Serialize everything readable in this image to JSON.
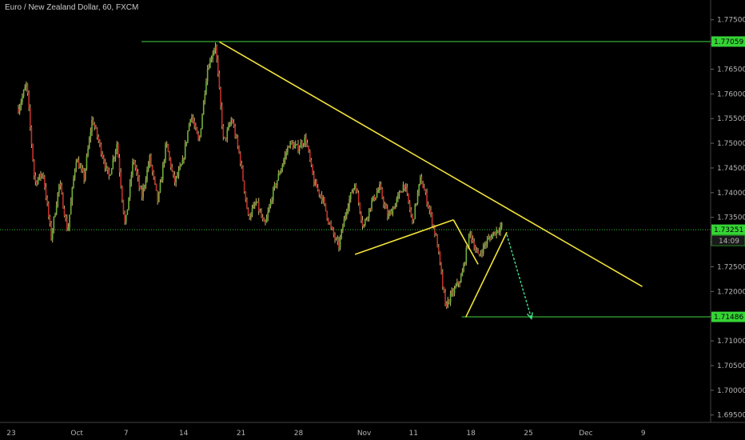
{
  "header": {
    "title": "Euro / New Zealand Dollar, 60, FXCM"
  },
  "colors": {
    "background": "#000000",
    "bull": "#6fae3a",
    "bear": "#c0302b",
    "wick": "#c8b46a",
    "axis_text": "#b3b3b3",
    "hline_green": "#2e9e2e",
    "trend_yellow": "#f2e23a",
    "arrow_green": "#46e08a",
    "current_price_line": "#37c837",
    "tag_green": "#35d435"
  },
  "chart_data": {
    "type": "candlestick",
    "instrument": "EUR/NZD",
    "timeframe": "60",
    "source": "FXCM",
    "ylim": [
      1.6935,
      1.779
    ],
    "y_ticks": [
      "1.77500",
      "1.77000",
      "1.76500",
      "1.76000",
      "1.75500",
      "1.75000",
      "1.74500",
      "1.74000",
      "1.73500",
      "1.73000",
      "1.72500",
      "1.72000",
      "1.71500",
      "1.71000",
      "1.70500",
      "1.70000",
      "1.69500"
    ],
    "x_ticks": [
      "23",
      "Oct",
      "7",
      "14",
      "21",
      "28",
      "Nov",
      "11",
      "18",
      "25",
      "Dec",
      "9"
    ],
    "x_tick_days": [
      0,
      8,
      14,
      21,
      28,
      35,
      43,
      49,
      56,
      63,
      70,
      77
    ],
    "candles_period": [
      0,
      59
    ],
    "price_path": [
      [
        0,
        1.757
      ],
      [
        1,
        1.762
      ],
      [
        2,
        1.742
      ],
      [
        3,
        1.744
      ],
      [
        4,
        1.731
      ],
      [
        5,
        1.742
      ],
      [
        6,
        1.732
      ],
      [
        7,
        1.747
      ],
      [
        8,
        1.743
      ],
      [
        9,
        1.755
      ],
      [
        10,
        1.749
      ],
      [
        11,
        1.743
      ],
      [
        12,
        1.75
      ],
      [
        13,
        1.733
      ],
      [
        14,
        1.747
      ],
      [
        15,
        1.739
      ],
      [
        16,
        1.747
      ],
      [
        17,
        1.738
      ],
      [
        18,
        1.75
      ],
      [
        19,
        1.742
      ],
      [
        20,
        1.746
      ],
      [
        21,
        1.756
      ],
      [
        22,
        1.75
      ],
      [
        23,
        1.765
      ],
      [
        24,
        1.77
      ],
      [
        25,
        1.75
      ],
      [
        26,
        1.755
      ],
      [
        27,
        1.747
      ],
      [
        28,
        1.735
      ],
      [
        29,
        1.738
      ],
      [
        30,
        1.733
      ],
      [
        31,
        1.74
      ],
      [
        32,
        1.745
      ],
      [
        33,
        1.75
      ],
      [
        34,
        1.749
      ],
      [
        35,
        1.751
      ],
      [
        36,
        1.742
      ],
      [
        37,
        1.739
      ],
      [
        38,
        1.733
      ],
      [
        39,
        1.729
      ],
      [
        40,
        1.737
      ],
      [
        41,
        1.742
      ],
      [
        42,
        1.733
      ],
      [
        43,
        1.738
      ],
      [
        44,
        1.741
      ],
      [
        45,
        1.735
      ],
      [
        46,
        1.738
      ],
      [
        47,
        1.742
      ],
      [
        48,
        1.734
      ],
      [
        49,
        1.743
      ],
      [
        50,
        1.737
      ],
      [
        51,
        1.73
      ],
      [
        52,
        1.717
      ],
      [
        53,
        1.72
      ],
      [
        54,
        1.723
      ],
      [
        55,
        1.732
      ],
      [
        56,
        1.727
      ],
      [
        57,
        1.73
      ],
      [
        58,
        1.732
      ],
      [
        59,
        1.7335
      ]
    ],
    "horizontal_levels": [
      {
        "price": 1.77059,
        "label": "1.77059",
        "from_day": 15
      },
      {
        "price": 1.71486,
        "label": "1.71486",
        "from_day": 54
      }
    ],
    "current_price": {
      "value": 1.73251,
      "label": "1.73251",
      "countdown": "14:09"
    },
    "trendlines": [
      {
        "name": "descending-resistance",
        "points": [
          [
            24.5,
            1.7705
          ],
          [
            76,
            1.721
          ]
        ]
      },
      {
        "name": "rising-wedge-lower",
        "points": [
          [
            41,
            1.7275
          ],
          [
            53,
            1.7345
          ]
        ]
      },
      {
        "name": "flag-left",
        "points": [
          [
            53,
            1.7345
          ],
          [
            56,
            1.7255
          ]
        ]
      },
      {
        "name": "flag-right",
        "points": [
          [
            54.5,
            1.7148
          ],
          [
            59.5,
            1.732
          ]
        ]
      }
    ],
    "projection_arrow": {
      "points": [
        [
          59.5,
          1.7315
        ],
        [
          62.5,
          1.7145
        ]
      ]
    }
  }
}
